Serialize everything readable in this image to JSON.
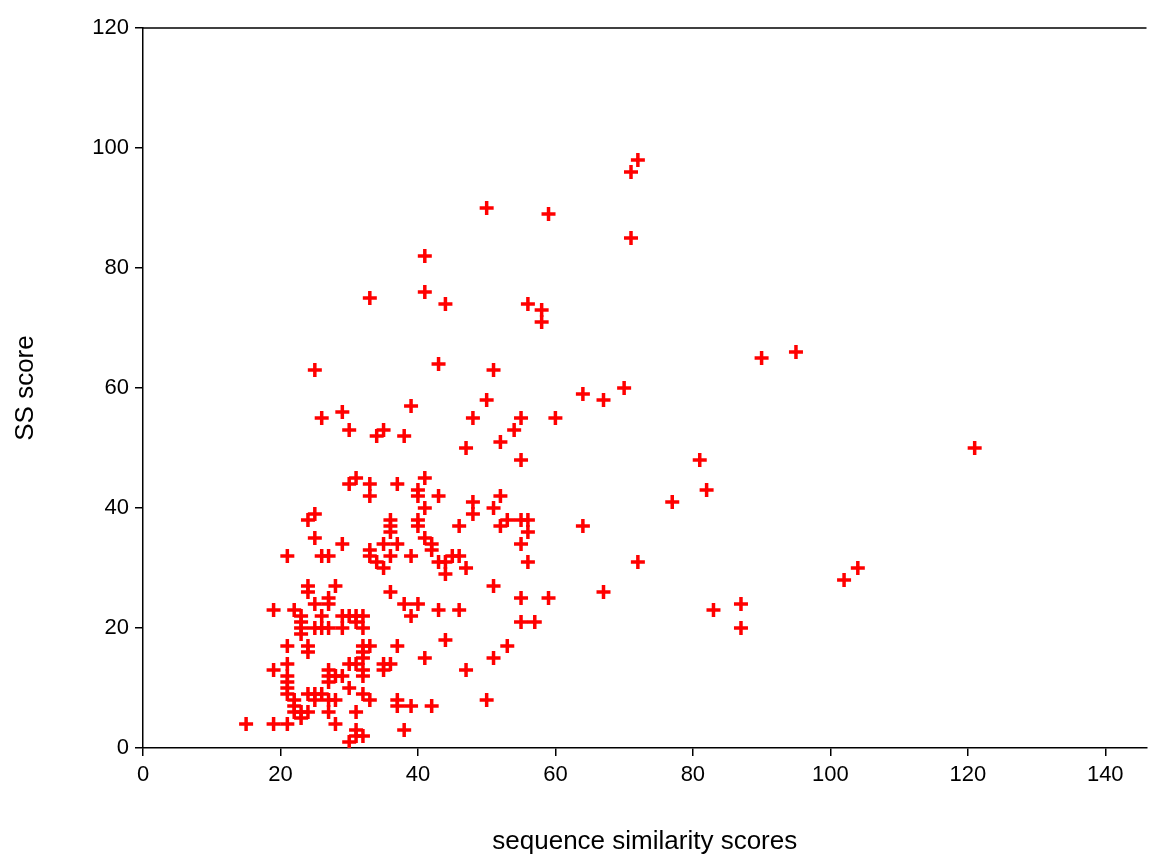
{
  "chart_data": {
    "type": "scatter",
    "xlabel": "sequence similarity scores",
    "ylabel": "SS score",
    "xlim": [
      0,
      146
    ],
    "xticks": [
      0,
      20,
      40,
      60,
      80,
      100,
      120,
      140
    ],
    "ylim": [
      0,
      120
    ],
    "yticks": [
      0,
      20,
      40,
      60,
      80,
      100,
      120
    ],
    "grid": false,
    "legend": false,
    "marker": "cross",
    "series": [
      {
        "color": "#ff0000",
        "x": [
          72,
          71,
          71,
          50,
          59,
          41,
          41,
          33,
          44,
          56,
          58,
          58,
          43,
          25,
          51,
          90,
          95,
          121,
          70,
          64,
          67,
          50,
          60,
          55,
          48,
          26,
          29,
          30,
          34,
          35,
          38,
          39,
          54,
          52,
          47,
          55,
          30,
          31,
          33,
          33,
          37,
          41,
          40,
          40,
          43,
          41,
          48,
          48,
          52,
          51,
          24,
          25,
          25,
          29,
          21,
          26,
          27,
          36,
          36,
          36,
          40,
          40,
          46,
          52,
          53,
          55,
          56,
          56,
          55,
          56,
          55,
          55,
          57,
          35,
          37,
          33,
          33,
          34,
          35,
          36,
          39,
          41,
          42,
          42,
          43,
          44,
          44,
          45,
          46,
          47,
          51,
          36,
          24,
          24,
          28,
          25,
          27,
          27,
          19,
          22,
          23,
          23,
          23,
          23,
          25,
          26,
          26,
          27,
          29,
          29,
          30,
          31,
          31,
          32,
          32,
          38,
          40,
          39,
          43,
          46,
          21,
          24,
          24,
          32,
          33,
          32,
          32,
          37,
          44,
          41,
          51,
          53,
          19,
          21,
          21,
          21,
          21,
          27,
          27,
          27,
          28,
          29,
          30,
          31,
          32,
          32,
          35,
          36,
          35,
          30,
          47,
          50,
          21,
          22,
          22,
          23,
          24,
          25,
          25,
          22,
          23,
          24,
          26,
          27,
          28,
          27,
          31,
          32,
          33,
          37,
          37,
          39,
          42,
          28,
          15,
          19,
          21,
          31,
          32,
          31,
          30,
          38,
          64,
          77,
          72,
          59,
          67,
          81,
          82,
          102,
          104,
          83,
          87,
          87
        ],
        "values": [
          98,
          96,
          85,
          90,
          89,
          82,
          76,
          75,
          74,
          74,
          73,
          71,
          64,
          63,
          63,
          65,
          66,
          50,
          60,
          59,
          58,
          58,
          55,
          55,
          55,
          55,
          56,
          53,
          52,
          53,
          52,
          57,
          53,
          51,
          50,
          48,
          44,
          45,
          44,
          42,
          44,
          45,
          43,
          42,
          42,
          40,
          41,
          39,
          42,
          40,
          38,
          39,
          35,
          34,
          32,
          32,
          32,
          38,
          37,
          36,
          38,
          37,
          37,
          37,
          38,
          38,
          38,
          36,
          34,
          31,
          25,
          21,
          21,
          34,
          34,
          33,
          32,
          31,
          30,
          32,
          32,
          35,
          34,
          33,
          31,
          31,
          29,
          32,
          32,
          30,
          27,
          26,
          27,
          26,
          27,
          24,
          25,
          24,
          23,
          23,
          22,
          21,
          20,
          19,
          20,
          22,
          20,
          20,
          22,
          20,
          22,
          22,
          21,
          22,
          20,
          24,
          24,
          22,
          23,
          23,
          17,
          17,
          16,
          17,
          17,
          16,
          15,
          17,
          18,
          15,
          15,
          17,
          13,
          14,
          12,
          11,
          10,
          13,
          12,
          11,
          12,
          12,
          14,
          14,
          13,
          12,
          14,
          14,
          13,
          10,
          13,
          8,
          9,
          8,
          7,
          6,
          9,
          9,
          8,
          6,
          5,
          6,
          9,
          8,
          8,
          6,
          6,
          9,
          8,
          8,
          7,
          7,
          7,
          4,
          4,
          4,
          4,
          3,
          2,
          2,
          1,
          3,
          37,
          41,
          31,
          25,
          26,
          48,
          43,
          28,
          30,
          23,
          24,
          20
        ]
      }
    ]
  }
}
